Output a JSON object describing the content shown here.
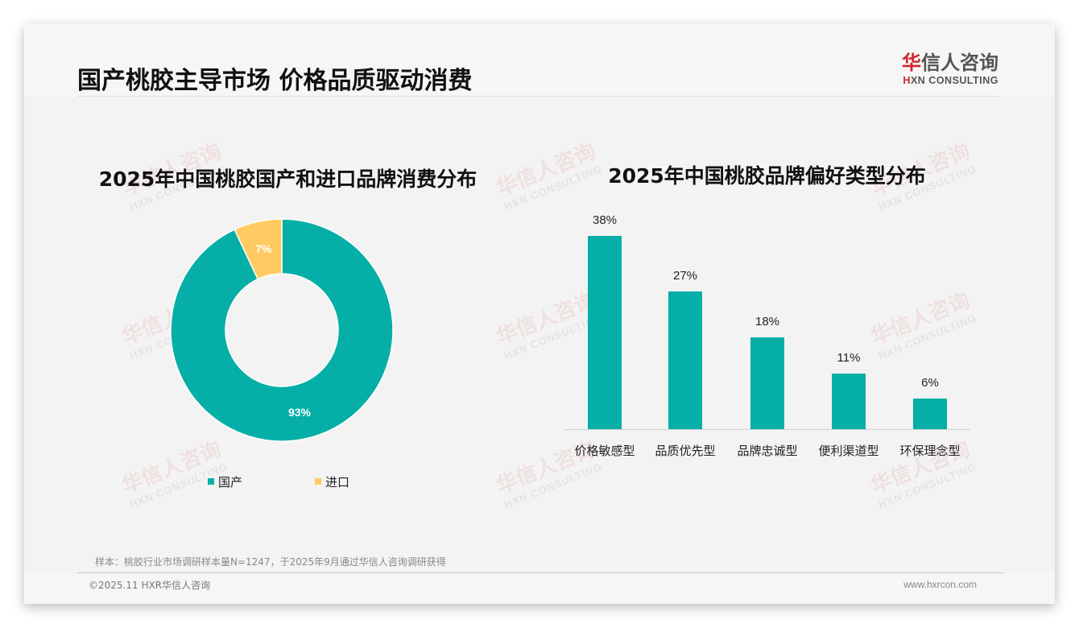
{
  "header": {
    "title": "国产桃胶主导市场 价格品质驱动消费",
    "logo_cn_first": "华",
    "logo_cn_rest": "信人咨询",
    "logo_en_first": "H",
    "logo_en_rest": "XN CONSULTING"
  },
  "watermark": {
    "cn": "华信人咨询",
    "en": "HXN CONSULTING"
  },
  "colors": {
    "teal": "#05AFA7",
    "yellow": "#FFCB62",
    "text": "#111111"
  },
  "chart_data": [
    {
      "type": "pie",
      "subtype": "donut",
      "title": "2025年中国桃胶国产和进口品牌消费分布",
      "categories": [
        "国产",
        "进口"
      ],
      "values": [
        93,
        7
      ],
      "labels": [
        "93%",
        "7%"
      ],
      "colors": [
        "#05AFA7",
        "#FFCB62"
      ],
      "legend_position": "bottom"
    },
    {
      "type": "bar",
      "title": "2025年中国桃胶品牌偏好类型分布",
      "categories": [
        "价格敏感型",
        "品质优先型",
        "品牌忠诚型",
        "便利渠道型",
        "环保理念型"
      ],
      "values": [
        38,
        27,
        18,
        11,
        6
      ],
      "labels": [
        "38%",
        "27%",
        "18%",
        "11%",
        "6%"
      ],
      "xlabel": "",
      "ylabel": "",
      "ylim": [
        0,
        40
      ],
      "grid": false,
      "color": "#05AFA7"
    }
  ],
  "legend": {
    "items": [
      {
        "label": "国产"
      },
      {
        "label": "进口"
      }
    ]
  },
  "footer": {
    "note": "样本：桃胶行业市场调研样本量N=1247，于2025年9月通过华信人咨询调研获得",
    "copyright": "©2025.11 HXR华信人咨询",
    "website": "www.hxrcon.com"
  }
}
